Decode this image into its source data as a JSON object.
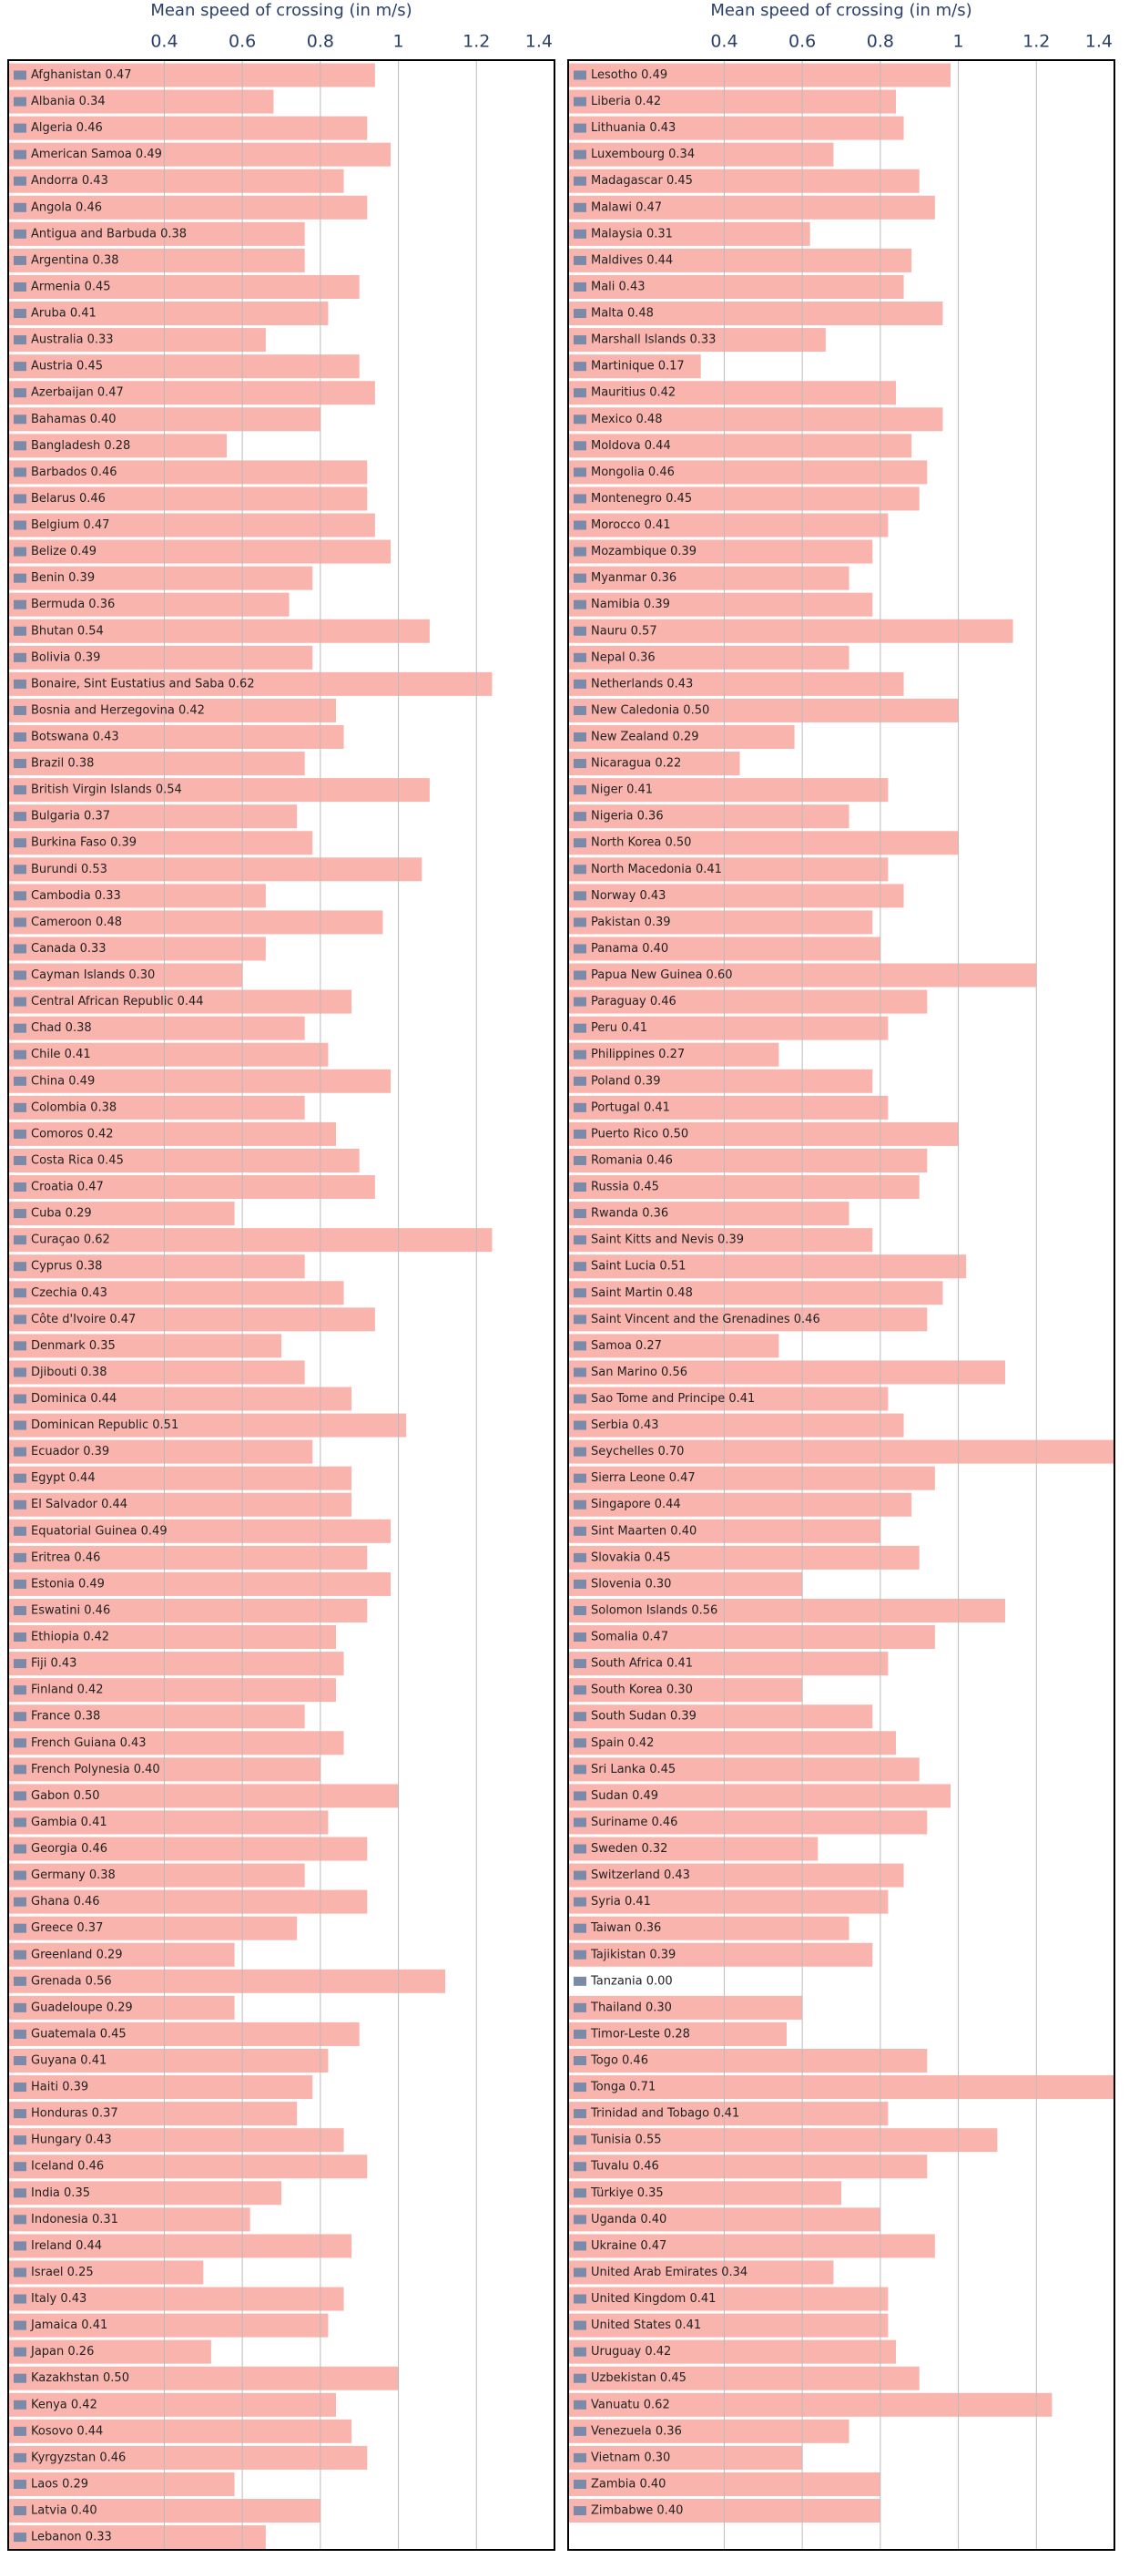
{
  "chart_data": [
    {
      "type": "bar",
      "orientation": "horizontal",
      "xlabel": "Mean speed of crossing (in m/s)",
      "color": "#f9b4ae",
      "grid": true,
      "xlim": [
        0,
        1.4
      ],
      "xticks": [
        0.4,
        0.6,
        0.8,
        1,
        1.2,
        1.4
      ],
      "categories": [
        "Afghanistan 0.47",
        "Albania 0.34",
        "Algeria 0.46",
        "American Samoa 0.49",
        "Andorra 0.43",
        "Angola 0.46",
        "Antigua and Barbuda 0.38",
        "Argentina 0.38",
        "Armenia 0.45",
        "Aruba 0.41",
        "Australia 0.33",
        "Austria 0.45",
        "Azerbaijan 0.47",
        "Bahamas 0.40",
        "Bangladesh 0.28",
        "Barbados 0.46",
        "Belarus 0.46",
        "Belgium 0.47",
        "Belize 0.49",
        "Benin 0.39",
        "Bermuda 0.36",
        "Bhutan 0.54",
        "Bolivia 0.39",
        "Bonaire, Sint Eustatius and Saba 0.62",
        "Bosnia and Herzegovina 0.42",
        "Botswana 0.43",
        "Brazil 0.38",
        "British Virgin Islands 0.54",
        "Bulgaria 0.37",
        "Burkina Faso 0.39",
        "Burundi 0.53",
        "Cambodia 0.33",
        "Cameroon 0.48",
        "Canada 0.33",
        "Cayman Islands 0.30",
        "Central African Republic 0.44",
        "Chad 0.38",
        "Chile 0.41",
        "China 0.49",
        "Colombia 0.38",
        "Comoros 0.42",
        "Costa Rica 0.45",
        "Croatia 0.47",
        "Cuba 0.29",
        "Curaçao 0.62",
        "Cyprus 0.38",
        "Czechia 0.43",
        "Côte d'Ivoire 0.47",
        "Denmark 0.35",
        "Djibouti 0.38",
        "Dominica 0.44",
        "Dominican Republic 0.51",
        "Ecuador 0.39",
        "Egypt 0.44",
        "El Salvador 0.44",
        "Equatorial Guinea 0.49",
        "Eritrea 0.46",
        "Estonia 0.49",
        "Eswatini 0.46",
        "Ethiopia 0.42",
        "Fiji 0.43",
        "Finland 0.42",
        "France 0.38",
        "French Guiana 0.43",
        "French Polynesia 0.40",
        "Gabon 0.50",
        "Gambia 0.41",
        "Georgia 0.46",
        "Germany 0.38",
        "Ghana 0.46",
        "Greece 0.37",
        "Greenland 0.29",
        "Grenada 0.56",
        "Guadeloupe 0.29",
        "Guatemala 0.45",
        "Guyana 0.41",
        "Haiti 0.39",
        "Honduras 0.37",
        "Hungary 0.43",
        "Iceland 0.46",
        "India 0.35",
        "Indonesia 0.31",
        "Ireland 0.44",
        "Israel 0.25",
        "Italy 0.43",
        "Jamaica 0.41",
        "Japan 0.26",
        "Kazakhstan 0.50",
        "Kenya 0.42",
        "Kosovo 0.44",
        "Kyrgyzstan 0.46",
        "Laos 0.29",
        "Latvia 0.40",
        "Lebanon 0.33"
      ],
      "values": [
        0.94,
        0.68,
        0.92,
        0.98,
        0.86,
        0.92,
        0.76,
        0.76,
        0.9,
        0.82,
        0.66,
        0.9,
        0.94,
        0.8,
        0.56,
        0.92,
        0.92,
        0.94,
        0.98,
        0.78,
        0.72,
        1.08,
        0.78,
        1.24,
        0.84,
        0.86,
        0.76,
        1.08,
        0.74,
        0.78,
        1.06,
        0.66,
        0.96,
        0.66,
        0.6,
        0.88,
        0.76,
        0.82,
        0.98,
        0.76,
        0.84,
        0.9,
        0.94,
        0.58,
        1.24,
        0.76,
        0.86,
        0.94,
        0.7,
        0.76,
        0.88,
        1.02,
        0.78,
        0.88,
        0.88,
        0.98,
        0.92,
        0.98,
        0.92,
        0.84,
        0.86,
        0.84,
        0.76,
        0.86,
        0.8,
        1.0,
        0.82,
        0.92,
        0.76,
        0.92,
        0.74,
        0.58,
        1.12,
        0.58,
        0.9,
        0.82,
        0.78,
        0.74,
        0.86,
        0.92,
        0.7,
        0.62,
        0.88,
        0.5,
        0.86,
        0.82,
        0.52,
        1.0,
        0.84,
        0.88,
        0.92,
        0.58,
        0.8,
        0.66
      ]
    },
    {
      "type": "bar",
      "orientation": "horizontal",
      "xlabel": "Mean speed of crossing (in m/s)",
      "color": "#f9b4ae",
      "grid": true,
      "xlim": [
        0,
        1.4
      ],
      "xticks": [
        0.4,
        0.6,
        0.8,
        1,
        1.2,
        1.4
      ],
      "categories": [
        "Lesotho 0.49",
        "Liberia 0.42",
        "Lithuania 0.43",
        "Luxembourg 0.34",
        "Madagascar 0.45",
        "Malawi 0.47",
        "Malaysia 0.31",
        "Maldives 0.44",
        "Mali 0.43",
        "Malta 0.48",
        "Marshall Islands 0.33",
        "Martinique 0.17",
        "Mauritius 0.42",
        "Mexico 0.48",
        "Moldova 0.44",
        "Mongolia 0.46",
        "Montenegro 0.45",
        "Morocco 0.41",
        "Mozambique 0.39",
        "Myanmar 0.36",
        "Namibia 0.39",
        "Nauru 0.57",
        "Nepal 0.36",
        "Netherlands 0.43",
        "New Caledonia 0.50",
        "New Zealand 0.29",
        "Nicaragua 0.22",
        "Niger 0.41",
        "Nigeria 0.36",
        "North Korea 0.50",
        "North Macedonia 0.41",
        "Norway 0.43",
        "Pakistan 0.39",
        "Panama 0.40",
        "Papua New Guinea 0.60",
        "Paraguay 0.46",
        "Peru 0.41",
        "Philippines 0.27",
        "Poland 0.39",
        "Portugal 0.41",
        "Puerto Rico 0.50",
        "Romania 0.46",
        "Russia 0.45",
        "Rwanda 0.36",
        "Saint Kitts and Nevis 0.39",
        "Saint Lucia 0.51",
        "Saint Martin 0.48",
        "Saint Vincent and the Grenadines 0.46",
        "Samoa 0.27",
        "San Marino 0.56",
        "Sao Tome and Principe 0.41",
        "Serbia 0.43",
        "Seychelles 0.70",
        "Sierra Leone 0.47",
        "Singapore 0.44",
        "Sint Maarten 0.40",
        "Slovakia 0.45",
        "Slovenia 0.30",
        "Solomon Islands 0.56",
        "Somalia 0.47",
        "South Africa 0.41",
        "South Korea 0.30",
        "South Sudan 0.39",
        "Spain 0.42",
        "Sri Lanka 0.45",
        "Sudan 0.49",
        "Suriname 0.46",
        "Sweden 0.32",
        "Switzerland 0.43",
        "Syria 0.41",
        "Taiwan 0.36",
        "Tajikistan 0.39",
        "Tanzania 0.00",
        "Thailand 0.30",
        "Timor-Leste 0.28",
        "Togo 0.46",
        "Tonga 0.71",
        "Trinidad and Tobago 0.41",
        "Tunisia 0.55",
        "Tuvalu 0.46",
        "Türkiye 0.35",
        "Uganda 0.40",
        "Ukraine 0.47",
        "United Arab Emirates 0.34",
        "United Kingdom 0.41",
        "United States 0.41",
        "Uruguay 0.42",
        "Uzbekistan 0.45",
        "Vanuatu 0.62",
        "Venezuela 0.36",
        "Vietnam 0.30",
        "Zambia 0.40",
        "Zimbabwe 0.40"
      ],
      "values": [
        0.98,
        0.84,
        0.86,
        0.68,
        0.9,
        0.94,
        0.62,
        0.88,
        0.86,
        0.96,
        0.66,
        0.34,
        0.84,
        0.96,
        0.88,
        0.92,
        0.9,
        0.82,
        0.78,
        0.72,
        0.78,
        1.14,
        0.72,
        0.86,
        1.0,
        0.58,
        0.44,
        0.82,
        0.72,
        1.0,
        0.82,
        0.86,
        0.78,
        0.8,
        1.2,
        0.92,
        0.82,
        0.54,
        0.78,
        0.82,
        1.0,
        0.92,
        0.9,
        0.72,
        0.78,
        1.02,
        0.96,
        0.92,
        0.54,
        1.12,
        0.82,
        0.86,
        1.4,
        0.94,
        0.88,
        0.8,
        0.9,
        0.6,
        1.12,
        0.94,
        0.82,
        0.6,
        0.78,
        0.84,
        0.9,
        0.98,
        0.92,
        0.64,
        0.86,
        0.82,
        0.72,
        0.78,
        0,
        0.6,
        0.56,
        0.92,
        1.42,
        0.82,
        1.1,
        0.92,
        0.7,
        0.8,
        0.94,
        0.68,
        0.82,
        0.82,
        0.84,
        0.9,
        1.24,
        0.72,
        0.6,
        0.8,
        0.8
      ]
    }
  ]
}
